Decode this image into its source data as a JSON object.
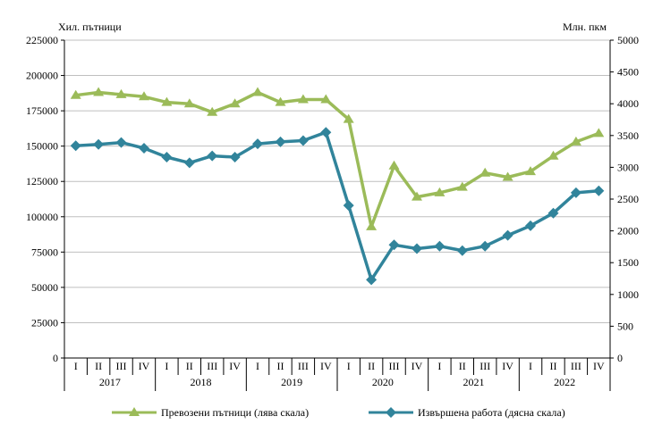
{
  "chart_data": {
    "type": "line",
    "left_axis_title": "Хил. пътници",
    "right_axis_title": "Млн. пкм",
    "ylim_left": [
      0,
      225000
    ],
    "ylim_right": [
      0,
      5000
    ],
    "yticks_left": [
      "0",
      "25000",
      "50000",
      "75000",
      "100000",
      "125000",
      "150000",
      "175000",
      "200000",
      "225000"
    ],
    "yticks_right": [
      "0",
      "500",
      "1000",
      "1500",
      "2000",
      "2500",
      "3000",
      "3500",
      "4000",
      "4500",
      "5000"
    ],
    "quarters": [
      "I",
      "II",
      "III",
      "IV",
      "I",
      "II",
      "III",
      "IV",
      "I",
      "II",
      "III",
      "IV",
      "I",
      "II",
      "III",
      "IV",
      "I",
      "II",
      "III",
      "IV",
      "I",
      "II",
      "III",
      "IV"
    ],
    "years": [
      "2017",
      "2018",
      "2019",
      "2020",
      "2021",
      "2022"
    ],
    "grid": "horizontal",
    "legend_position": "bottom",
    "series": [
      {
        "name": "Превозени пътници (лява скала)",
        "axis": "left",
        "color": "#9bbb59",
        "marker": "triangle",
        "values": [
          186000,
          188000,
          186500,
          185000,
          181000,
          180000,
          174000,
          180000,
          188000,
          181000,
          183000,
          183000,
          169000,
          93000,
          136000,
          114000,
          117000,
          121000,
          131000,
          128000,
          132000,
          143000,
          153000,
          159000
        ]
      },
      {
        "name": "Извършена работа (дясна скала)",
        "axis": "right",
        "color": "#31849b",
        "marker": "diamond",
        "values": [
          3340,
          3360,
          3390,
          3300,
          3160,
          3070,
          3180,
          3160,
          3370,
          3400,
          3420,
          3550,
          2400,
          1230,
          1780,
          1720,
          1760,
          1690,
          1760,
          1930,
          2080,
          2280,
          2600,
          2630
        ]
      }
    ]
  }
}
